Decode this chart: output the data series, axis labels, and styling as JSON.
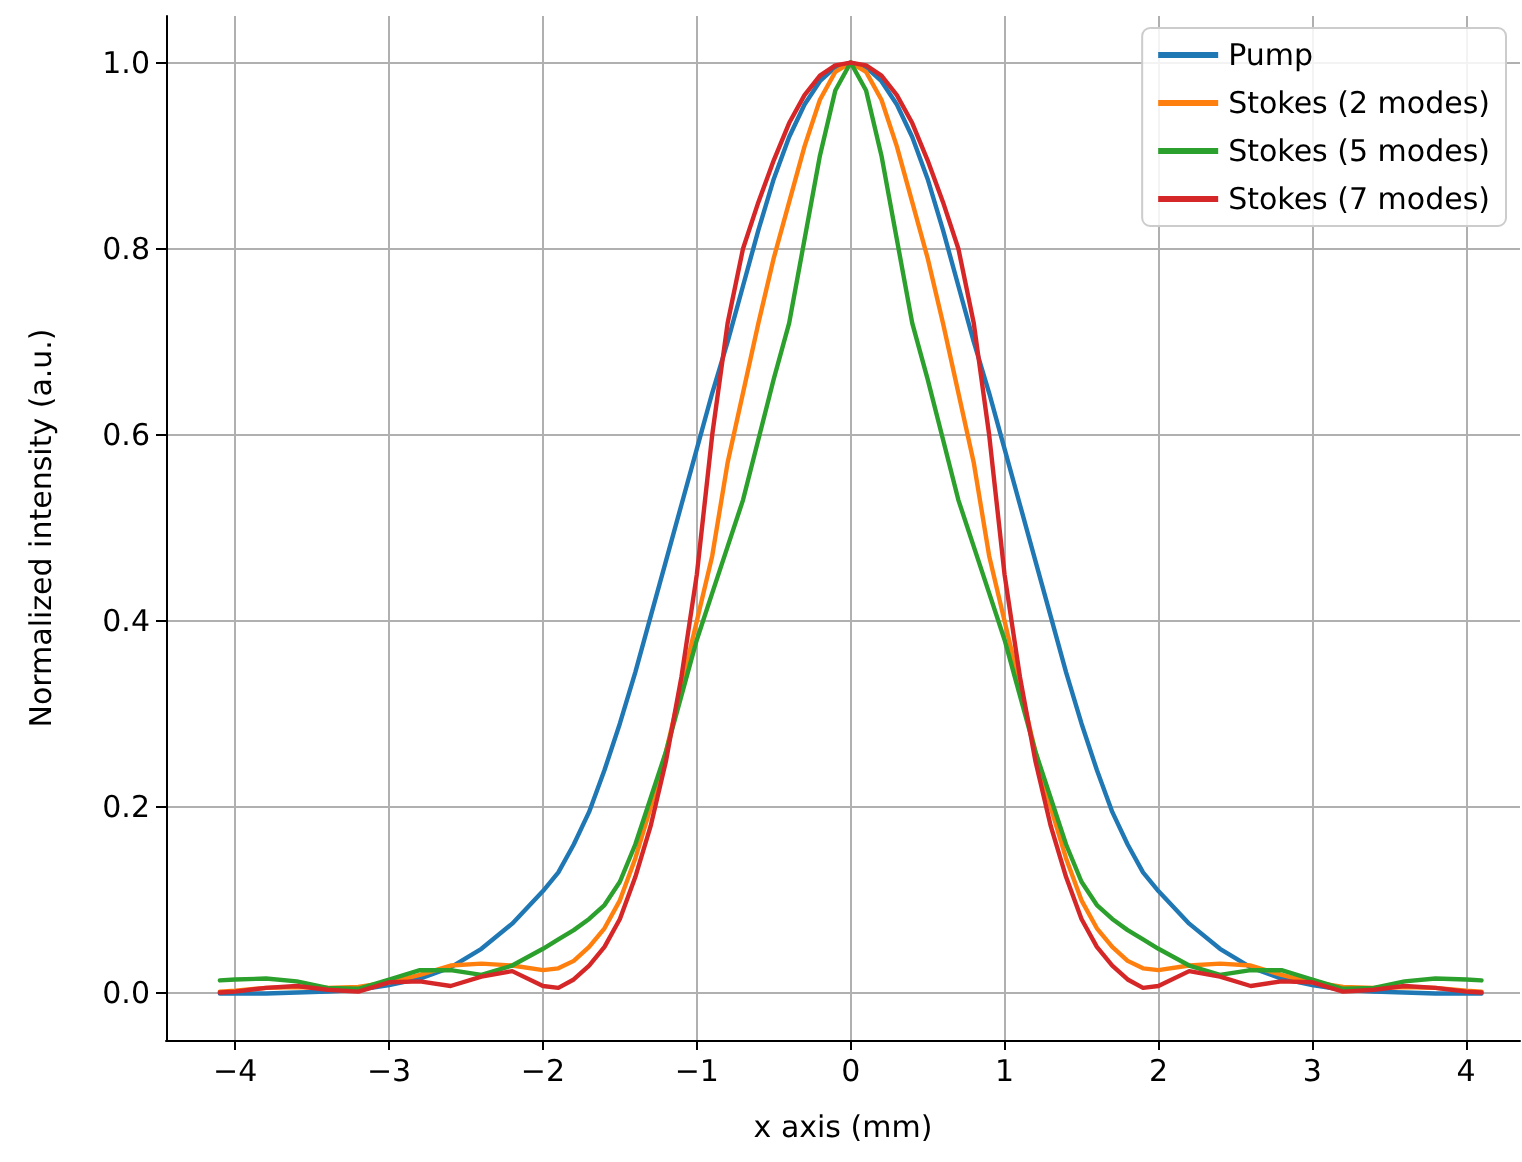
{
  "chart_data": {
    "type": "line",
    "xlabel": "x axis (mm)",
    "ylabel": "Normalized intensity (a.u.)",
    "x": [
      -4.1,
      -4,
      -3.8,
      -3.6,
      -3.4,
      -3.2,
      -3,
      -2.8,
      -2.6,
      -2.4,
      -2.2,
      -2,
      -1.9,
      -1.8,
      -1.7,
      -1.6,
      -1.5,
      -1.4,
      -1.3,
      -1.2,
      -1.1,
      -1,
      -0.9,
      -0.8,
      -0.7,
      -0.6,
      -0.5,
      -0.4,
      -0.3,
      -0.2,
      -0.1,
      0,
      0.1,
      0.2,
      0.3,
      0.4,
      0.5,
      0.6,
      0.7,
      0.8,
      0.9,
      1,
      1.1,
      1.2,
      1.3,
      1.4,
      1.5,
      1.6,
      1.7,
      1.8,
      1.9,
      2,
      2.2,
      2.4,
      2.6,
      2.8,
      3,
      3.2,
      3.4,
      3.6,
      3.8,
      4,
      4.1
    ],
    "series": [
      {
        "name": "Pump",
        "color": "#1f77b4",
        "values": [
          0,
          0,
          0,
          0.001,
          0.002,
          0.004,
          0.009,
          0.016,
          0.028,
          0.048,
          0.075,
          0.11,
          0.13,
          0.16,
          0.195,
          0.24,
          0.29,
          0.345,
          0.405,
          0.465,
          0.525,
          0.585,
          0.645,
          0.7,
          0.76,
          0.82,
          0.875,
          0.92,
          0.955,
          0.98,
          0.995,
          1,
          0.995,
          0.98,
          0.955,
          0.92,
          0.875,
          0.82,
          0.76,
          0.7,
          0.645,
          0.585,
          0.525,
          0.465,
          0.405,
          0.345,
          0.29,
          0.24,
          0.195,
          0.16,
          0.13,
          0.11,
          0.075,
          0.048,
          0.028,
          0.016,
          0.009,
          0.004,
          0.002,
          0.001,
          0,
          0,
          0
        ]
      },
      {
        "name": "Stokes (2 modes)",
        "color": "#ff7f0e",
        "values": [
          0.002,
          0.003,
          0.006,
          0.007,
          0.006,
          0.007,
          0.012,
          0.02,
          0.03,
          0.032,
          0.03,
          0.025,
          0.027,
          0.035,
          0.05,
          0.07,
          0.1,
          0.145,
          0.2,
          0.26,
          0.33,
          0.4,
          0.47,
          0.57,
          0.645,
          0.72,
          0.79,
          0.85,
          0.91,
          0.96,
          0.99,
          1,
          0.99,
          0.96,
          0.91,
          0.85,
          0.79,
          0.72,
          0.645,
          0.57,
          0.47,
          0.4,
          0.33,
          0.26,
          0.2,
          0.145,
          0.1,
          0.07,
          0.05,
          0.035,
          0.027,
          0.025,
          0.03,
          0.032,
          0.03,
          0.02,
          0.012,
          0.007,
          0.006,
          0.007,
          0.006,
          0.003,
          0.002
        ]
      },
      {
        "name": "Stokes (5 modes)",
        "color": "#2ca02c",
        "values": [
          0.014,
          0.015,
          0.016,
          0.013,
          0.006,
          0.005,
          0.015,
          0.025,
          0.025,
          0.02,
          0.03,
          0.048,
          0.058,
          0.068,
          0.08,
          0.095,
          0.12,
          0.16,
          0.21,
          0.26,
          0.32,
          0.38,
          0.43,
          0.48,
          0.53,
          0.595,
          0.66,
          0.72,
          0.81,
          0.9,
          0.97,
          1,
          0.97,
          0.9,
          0.81,
          0.72,
          0.66,
          0.595,
          0.53,
          0.48,
          0.43,
          0.38,
          0.32,
          0.26,
          0.21,
          0.16,
          0.12,
          0.095,
          0.08,
          0.068,
          0.058,
          0.048,
          0.03,
          0.02,
          0.025,
          0.025,
          0.015,
          0.005,
          0.006,
          0.013,
          0.016,
          0.015,
          0.014
        ]
      },
      {
        "name": "Stokes (7 modes)",
        "color": "#d62728",
        "values": [
          0.001,
          0.002,
          0.006,
          0.008,
          0.004,
          0.002,
          0.012,
          0.013,
          0.008,
          0.018,
          0.024,
          0.008,
          0.006,
          0.015,
          0.03,
          0.05,
          0.08,
          0.125,
          0.18,
          0.25,
          0.34,
          0.45,
          0.6,
          0.72,
          0.8,
          0.85,
          0.895,
          0.935,
          0.965,
          0.986,
          0.997,
          1,
          0.997,
          0.986,
          0.965,
          0.935,
          0.895,
          0.85,
          0.8,
          0.72,
          0.6,
          0.45,
          0.34,
          0.25,
          0.18,
          0.125,
          0.08,
          0.05,
          0.03,
          0.015,
          0.006,
          0.008,
          0.024,
          0.018,
          0.008,
          0.013,
          0.012,
          0.002,
          0.004,
          0.008,
          0.006,
          0.002,
          0.001
        ]
      }
    ],
    "xlim": [
      -4.45,
      4.35
    ],
    "xticks": [
      {
        "value": -4,
        "label": "−4"
      },
      {
        "value": -3,
        "label": "−3"
      },
      {
        "value": -2,
        "label": "−2"
      },
      {
        "value": -1,
        "label": "−1"
      },
      0,
      1,
      2,
      3,
      4
    ],
    "ylim": [
      -0.05,
      1.05
    ],
    "yticks": [
      {
        "value": 0,
        "label": "0.0"
      },
      {
        "value": 0.2,
        "label": "0.2"
      },
      {
        "value": 0.4,
        "label": "0.4"
      },
      {
        "value": 0.6,
        "label": "0.6"
      },
      {
        "value": 0.8,
        "label": "0.8"
      },
      {
        "value": 1,
        "label": "1.0"
      }
    ],
    "grid": true,
    "legend": "top right",
    "marker": "none",
    "line_style": "solid"
  }
}
